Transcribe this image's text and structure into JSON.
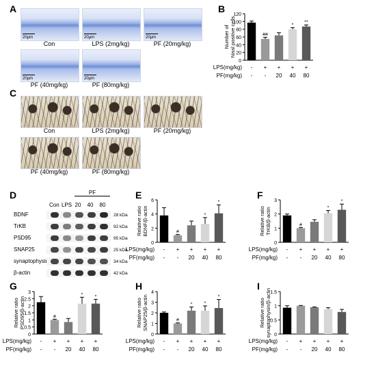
{
  "panels": {
    "A": "A",
    "B": "B",
    "C": "C",
    "D": "D",
    "E": "E",
    "F": "F",
    "G": "G",
    "H": "H",
    "I": "I"
  },
  "micro_A": [
    {
      "caption": "Con",
      "scale": "20μm"
    },
    {
      "caption": "LPS (2mg/kg)",
      "scale": "20μm"
    },
    {
      "caption": "PF (20mg/kg)",
      "scale": "20μm"
    },
    {
      "caption": "PF (40mg/kg)",
      "scale": "20μm"
    },
    {
      "caption": "PF (80mg/kg)",
      "scale": "20μm"
    }
  ],
  "micro_C": [
    {
      "caption": "Con"
    },
    {
      "caption": "LPS (2mg/kg)"
    },
    {
      "caption": "PF (20mg/kg)"
    },
    {
      "caption": "PF (40mg/kg)"
    },
    {
      "caption": "PF (80mg/kg)"
    }
  ],
  "blot": {
    "group_label": "PF",
    "lanes": [
      "Con",
      "LPS",
      "20",
      "40",
      "80"
    ],
    "rows": [
      {
        "name": "BDNF",
        "kda": "28 kDa"
      },
      {
        "name": "TrKB",
        "kda": "92 kDa"
      },
      {
        "name": "PSD95",
        "kda": "95 kDa"
      },
      {
        "name": "SNAP25",
        "kda": "25 kDa"
      },
      {
        "name": "synaptophysin",
        "kda": "34 kDa"
      },
      {
        "name": "β-actin",
        "kda": "42 kDa"
      }
    ]
  },
  "treatment": {
    "lps_label": "LPS(mg/kg)",
    "pf_label": "PF(mg/kg)",
    "lps": [
      "-",
      "+",
      "+",
      "+",
      "+"
    ],
    "pf": [
      "-",
      "-",
      "20",
      "40",
      "80"
    ]
  },
  "colors": [
    "#000000",
    "#9a9a9a",
    "#7a7a7a",
    "#d6d6d6",
    "#585858"
  ],
  "chart_data": [
    {
      "id": "B",
      "type": "bar",
      "ylabel": "Number of Nissl positive cells",
      "ylim": [
        0,
        120
      ],
      "ticks": [
        0,
        20,
        40,
        60,
        80,
        100,
        120
      ],
      "values": [
        97,
        55,
        64,
        80,
        87
      ],
      "errors": [
        4,
        4,
        7,
        4,
        4
      ],
      "marks": [
        "",
        "##",
        "",
        "*",
        "**"
      ]
    },
    {
      "id": "E",
      "type": "bar",
      "ylabel": "Relative ratio BDNF/β-actin",
      "ylim": [
        0,
        6
      ],
      "ticks": [
        0,
        2,
        4,
        6
      ],
      "values": [
        3.8,
        1.0,
        2.4,
        2.6,
        4.1
      ],
      "errors": [
        1.1,
        0.1,
        0.6,
        0.9,
        1.2
      ],
      "marks": [
        "",
        "#",
        "",
        "*",
        "*"
      ]
    },
    {
      "id": "F",
      "type": "bar",
      "ylabel": "Relative ratio TrKB/β-actin",
      "ylim": [
        0,
        3
      ],
      "ticks": [
        0,
        1,
        2,
        3
      ],
      "values": [
        1.9,
        1.0,
        1.45,
        2.05,
        2.3
      ],
      "errors": [
        0.1,
        0.05,
        0.15,
        0.2,
        0.4
      ],
      "marks": [
        "",
        "#",
        "",
        "*",
        "*"
      ]
    },
    {
      "id": "G",
      "type": "bar",
      "ylabel": "Relative ratio PSD95/β-actin",
      "ylim": [
        0,
        3
      ],
      "ticks": [
        0,
        0.5,
        1,
        1.5,
        2,
        2.5,
        3
      ],
      "values": [
        2.25,
        1.0,
        0.85,
        2.15,
        2.15
      ],
      "errors": [
        0.4,
        0.05,
        0.25,
        0.45,
        0.3
      ],
      "marks": [
        "",
        "#",
        "",
        "*",
        "*"
      ]
    },
    {
      "id": "H",
      "type": "bar",
      "ylabel": "Relative ratio SNAP25/β-actin",
      "ylim": [
        0,
        4
      ],
      "ticks": [
        0,
        1,
        2,
        3,
        4
      ],
      "values": [
        2.0,
        1.0,
        2.2,
        2.2,
        2.45
      ],
      "errors": [
        0.08,
        0.05,
        0.35,
        0.45,
        0.8
      ],
      "marks": [
        "",
        "#",
        "*",
        "*",
        "*"
      ]
    },
    {
      "id": "I",
      "type": "bar",
      "ylabel": "Relative ratio synaptophysin/β-actin",
      "ylim": [
        0,
        1.5
      ],
      "ticks": [
        0,
        0.5,
        1,
        1.5
      ],
      "values": [
        0.93,
        1.0,
        0.95,
        0.88,
        0.78
      ],
      "errors": [
        0.07,
        0.01,
        0.01,
        0.05,
        0.09
      ],
      "marks": [
        "",
        "",
        "",
        "",
        ""
      ]
    }
  ]
}
